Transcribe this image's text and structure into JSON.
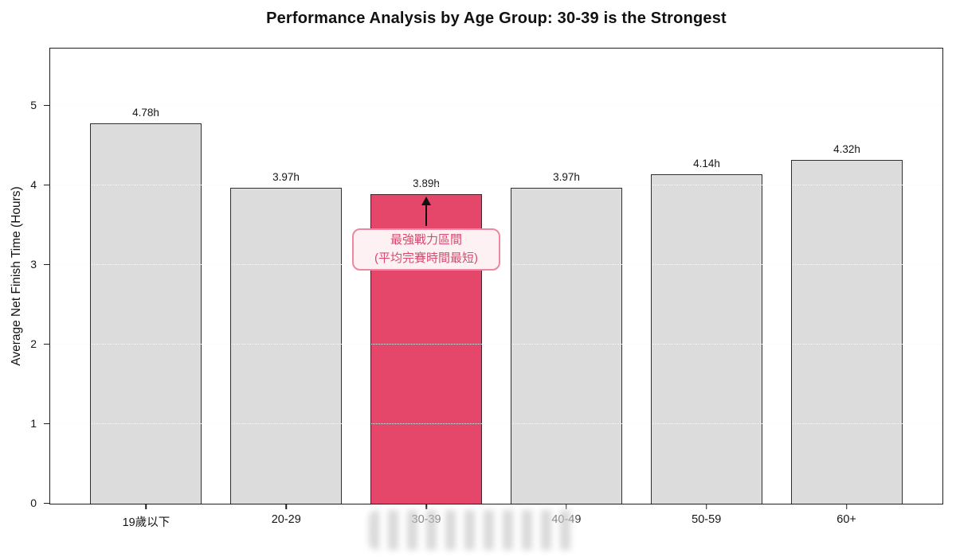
{
  "chart_data": {
    "type": "bar",
    "title": "Performance Analysis by Age Group: 30-39 is the Strongest",
    "ylabel": "Average Net Finish Time (Hours)",
    "xlabel": "",
    "categories": [
      "19歲以下",
      "20-29",
      "30-39",
      "40-49",
      "50-59",
      "60+"
    ],
    "values": [
      4.78,
      3.97,
      3.89,
      3.97,
      4.14,
      4.32
    ],
    "bar_labels": [
      "4.78h",
      "3.97h",
      "3.89h",
      "3.97h",
      "4.14h",
      "4.32h"
    ],
    "ylim": [
      0,
      5.71
    ],
    "yticks": [
      "0",
      "1",
      "2",
      "3",
      "4",
      "5"
    ],
    "grid": "horizontal-dotted",
    "legend": "none",
    "highlight": {
      "index": 2,
      "annotation_lines": [
        "最強戰力區間",
        "(平均完賽時間最短)"
      ],
      "arrow": "up-to-bar-top"
    },
    "colors": {
      "bar_fill": "#dcdcdc",
      "bar_edge": "#303030",
      "highlight_fill": "#e5476b",
      "highlight_edge": "#452329",
      "annotation_text": "#d64a6e",
      "annotation_bg": "#fdf1f4",
      "annotation_border": "#ee87a1",
      "axis": "#1d1d1d",
      "text": "#111111"
    },
    "artifacts": {
      "watermark_smudge": "blurred white streaks over 30-39 and 40-49 tick labels"
    }
  }
}
